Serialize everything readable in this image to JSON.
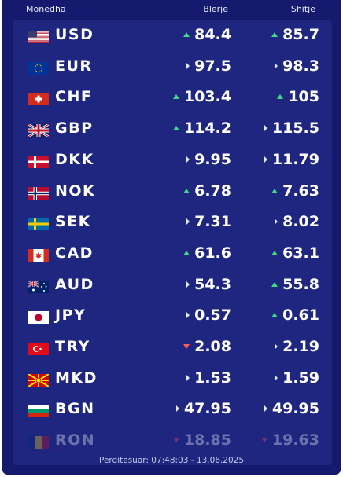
{
  "header": {
    "currency_label": "Monedha",
    "buy_label": "Blerje",
    "sell_label": "Shitje"
  },
  "rates": [
    {
      "code": "USD",
      "buy": "84.4",
      "buy_trend": "up",
      "sell": "85.7",
      "sell_trend": "up"
    },
    {
      "code": "EUR",
      "buy": "97.5",
      "buy_trend": "same",
      "sell": "98.3",
      "sell_trend": "same"
    },
    {
      "code": "CHF",
      "buy": "103.4",
      "buy_trend": "up",
      "sell": "105",
      "sell_trend": "up"
    },
    {
      "code": "GBP",
      "buy": "114.2",
      "buy_trend": "up",
      "sell": "115.5",
      "sell_trend": "same"
    },
    {
      "code": "DKK",
      "buy": "9.95",
      "buy_trend": "same",
      "sell": "11.79",
      "sell_trend": "same"
    },
    {
      "code": "NOK",
      "buy": "6.78",
      "buy_trend": "up",
      "sell": "7.63",
      "sell_trend": "up"
    },
    {
      "code": "SEK",
      "buy": "7.31",
      "buy_trend": "same",
      "sell": "8.02",
      "sell_trend": "same"
    },
    {
      "code": "CAD",
      "buy": "61.6",
      "buy_trend": "up",
      "sell": "63.1",
      "sell_trend": "up"
    },
    {
      "code": "AUD",
      "buy": "54.3",
      "buy_trend": "same",
      "sell": "55.8",
      "sell_trend": "up"
    },
    {
      "code": "JPY",
      "buy": "0.57",
      "buy_trend": "same",
      "sell": "0.61",
      "sell_trend": "up"
    },
    {
      "code": "TRY",
      "buy": "2.08",
      "buy_trend": "down",
      "sell": "2.19",
      "sell_trend": "same"
    },
    {
      "code": "MKD",
      "buy": "1.53",
      "buy_trend": "same",
      "sell": "1.59",
      "sell_trend": "same"
    },
    {
      "code": "BGN",
      "buy": "47.95",
      "buy_trend": "same",
      "sell": "49.95",
      "sell_trend": "same"
    },
    {
      "code": "RON",
      "buy": "18.85",
      "buy_trend": "down",
      "sell": "19.63",
      "sell_trend": "down"
    }
  ],
  "footer": {
    "updated": "Përditësuar: 07:48:03 - 13.06.2025"
  },
  "colors": {
    "panel_bg": "#151a6e",
    "list_bg": "#1e2680",
    "up": "#3ddc84",
    "down": "#ff5a5a",
    "same": "#e5e7f0"
  }
}
